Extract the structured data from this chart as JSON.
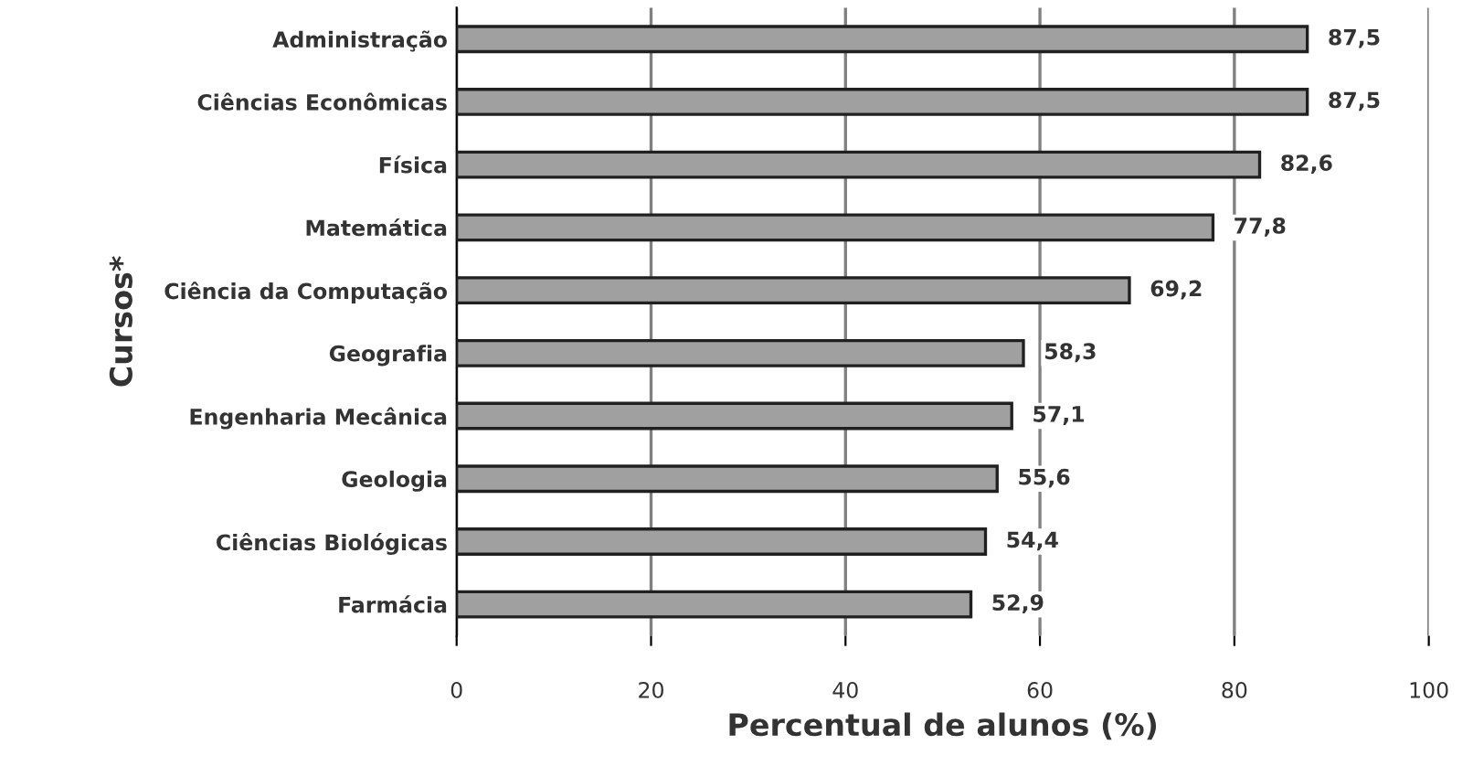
{
  "chart_data": {
    "type": "bar",
    "orientation": "horizontal",
    "xlabel": "Percentual de alunos (%)",
    "ylabel": "Cursos*",
    "categories": [
      "Administração",
      "Ciências Econômicas",
      "Física",
      "Matemática",
      "Ciência da Computação",
      "Geografia",
      "Engenharia Mecânica",
      "Geologia",
      "Ciências Biológicas",
      "Farmácia"
    ],
    "values": [
      87.5,
      87.5,
      82.6,
      77.8,
      69.2,
      58.3,
      57.1,
      55.6,
      54.4,
      52.9
    ],
    "value_labels": [
      "87,5",
      "87,5",
      "82,6",
      "77,8",
      "69,2",
      "58,3",
      "57,1",
      "55,6",
      "54,4",
      "52,9"
    ],
    "color": "#a0a0a0",
    "xlim": [
      0,
      100
    ],
    "xticks": [
      0,
      20,
      40,
      60,
      80,
      100
    ],
    "grid": "x"
  }
}
